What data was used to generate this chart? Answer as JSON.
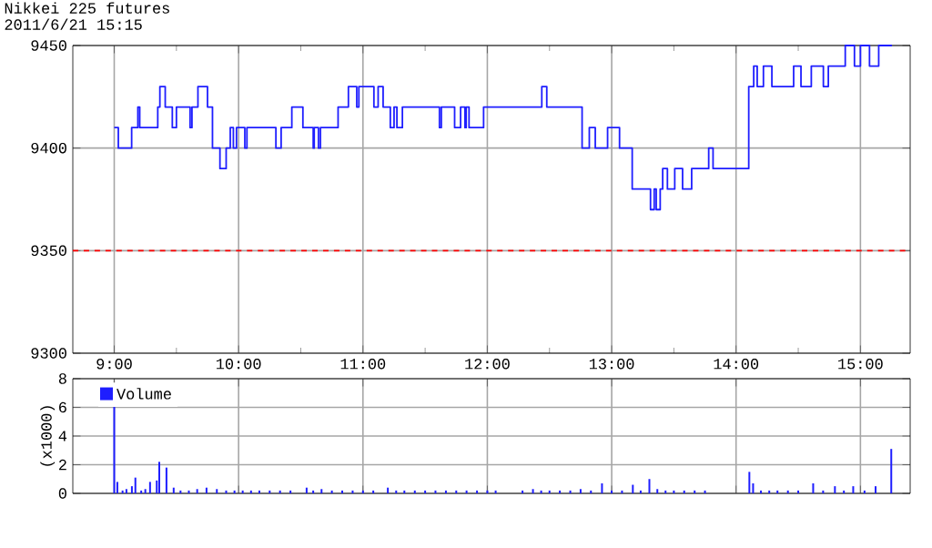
{
  "chart_data": [
    {
      "type": "step",
      "title": "Nikkei 225 futures",
      "subtitle": "2011/6/21 15:15",
      "xlim": [
        8.667,
        15.4
      ],
      "xticks": [
        {
          "value": 9,
          "label": "9:00"
        },
        {
          "value": 9.5,
          "label": null
        },
        {
          "value": 10,
          "label": "10:00"
        },
        {
          "value": 10.5,
          "label": null
        },
        {
          "value": 11,
          "label": "11:00"
        },
        {
          "value": 11.5,
          "label": null
        },
        {
          "value": 12,
          "label": "12:00"
        },
        {
          "value": 12.5,
          "label": null
        },
        {
          "value": 13,
          "label": "13:00"
        },
        {
          "value": 13.5,
          "label": null
        },
        {
          "value": 14,
          "label": "14:00"
        },
        {
          "value": 14.5,
          "label": null
        },
        {
          "value": 15,
          "label": "15:00"
        }
      ],
      "ylim": [
        9300,
        9450
      ],
      "yticks": [
        9300,
        9350,
        9400,
        9450
      ],
      "grid": true,
      "ref_lines": [
        {
          "axis": "y",
          "value": 9350,
          "color": "#ff0000",
          "line_style": "dashed"
        }
      ],
      "series": [
        {
          "color": "#1e1eff",
          "x": [
            9.0,
            9.033,
            9.14,
            9.19,
            9.205,
            9.35,
            9.367,
            9.41,
            9.467,
            9.5,
            9.61,
            9.625,
            9.673,
            9.75,
            9.79,
            9.85,
            9.9,
            9.933,
            9.958,
            9.983,
            10.05,
            10.067,
            10.3,
            10.342,
            10.428,
            10.517,
            10.6,
            10.608,
            10.642,
            10.658,
            10.8,
            10.883,
            10.95,
            10.967,
            11.088,
            11.122,
            11.162,
            11.22,
            11.25,
            11.273,
            11.317,
            11.615,
            11.63,
            11.737,
            11.785,
            11.82,
            11.83,
            11.853,
            11.97,
            12.438,
            12.478,
            12.762,
            12.82,
            12.868,
            12.967,
            13.063,
            13.165,
            13.312,
            13.342,
            13.358,
            13.39,
            13.41,
            13.448,
            13.507,
            13.57,
            13.643,
            13.78,
            13.815,
            14.102,
            14.142,
            14.17,
            14.22,
            14.288,
            14.463,
            14.522,
            14.605,
            14.702,
            14.742,
            14.878,
            14.952,
            15.0,
            15.073,
            15.147,
            15.253
          ],
          "values": [
            9410,
            9400,
            9410,
            9420,
            9410,
            9420,
            9430,
            9420,
            9410,
            9420,
            9410,
            9420,
            9430,
            9420,
            9400,
            9390,
            9400,
            9410,
            9400,
            9410,
            9400,
            9410,
            9400,
            9410,
            9420,
            9410,
            9400,
            9410,
            9400,
            9410,
            9420,
            9430,
            9420,
            9430,
            9420,
            9430,
            9420,
            9410,
            9420,
            9410,
            9420,
            9410,
            9420,
            9410,
            9420,
            9410,
            9420,
            9410,
            9420,
            9430,
            9420,
            9400,
            9410,
            9400,
            9410,
            9400,
            9380,
            9370,
            9380,
            9370,
            9380,
            9390,
            9380,
            9390,
            9380,
            9390,
            9400,
            9390,
            9430,
            9440,
            9430,
            9440,
            9430,
            9440,
            9430,
            9440,
            9430,
            9440,
            9450,
            9440,
            9450,
            9440,
            9450,
            9450
          ]
        }
      ]
    },
    {
      "type": "bar",
      "ylabel": "(x1000)",
      "legend": "top left",
      "tick_labels": "y",
      "xlim": [
        8.667,
        15.4
      ],
      "xticks": [
        9,
        10,
        11,
        12,
        13,
        14,
        15
      ],
      "ylim": [
        0,
        8
      ],
      "yticks": [
        0,
        2,
        4,
        6,
        8
      ],
      "grid": true,
      "series": [
        {
          "name": "Volume",
          "color": "#1e1eff",
          "x": [
            9.0,
            9.025,
            9.067,
            9.098,
            9.142,
            9.17,
            9.217,
            9.25,
            9.288,
            9.342,
            9.362,
            9.42,
            9.478,
            9.533,
            9.6,
            9.667,
            9.742,
            9.825,
            9.9,
            9.967,
            10.033,
            10.1,
            10.167,
            10.25,
            10.333,
            10.417,
            10.547,
            10.6,
            10.667,
            10.75,
            10.833,
            10.917,
            11.0,
            11.083,
            11.2,
            11.267,
            11.333,
            11.417,
            11.5,
            11.583,
            11.667,
            11.75,
            11.833,
            11.917,
            12.0,
            12.067,
            12.283,
            12.367,
            12.433,
            12.5,
            12.583,
            12.667,
            12.75,
            12.833,
            12.922,
            13.0,
            13.083,
            13.17,
            13.233,
            13.303,
            13.367,
            13.433,
            13.5,
            13.583,
            13.667,
            13.75,
            14.107,
            14.137,
            14.2,
            14.267,
            14.333,
            14.417,
            14.5,
            14.62,
            14.7,
            14.795,
            14.867,
            14.942,
            15.033,
            15.122,
            15.248
          ],
          "values": [
            6.4,
            0.8,
            0.2,
            0.3,
            0.5,
            1.1,
            0.2,
            0.3,
            0.8,
            0.9,
            2.2,
            1.8,
            0.4,
            0.2,
            0.2,
            0.3,
            0.4,
            0.3,
            0.2,
            0.2,
            0.2,
            0.2,
            0.2,
            0.2,
            0.2,
            0.2,
            0.4,
            0.2,
            0.3,
            0.2,
            0.2,
            0.2,
            0.2,
            0.2,
            0.4,
            0.2,
            0.2,
            0.2,
            0.2,
            0.2,
            0.2,
            0.2,
            0.2,
            0.2,
            0.2,
            0.2,
            0.2,
            0.3,
            0.2,
            0.2,
            0.2,
            0.2,
            0.3,
            0.2,
            0.7,
            0.2,
            0.2,
            0.6,
            0.2,
            1.0,
            0.3,
            0.2,
            0.2,
            0.2,
            0.2,
            0.2,
            1.5,
            0.7,
            0.2,
            0.2,
            0.2,
            0.2,
            0.2,
            0.7,
            0.2,
            0.5,
            0.2,
            0.5,
            0.2,
            0.5,
            3.1
          ]
        }
      ]
    }
  ]
}
